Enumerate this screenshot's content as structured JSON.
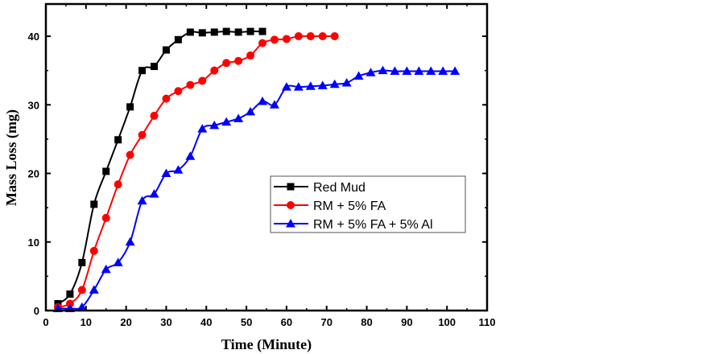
{
  "chart_data": {
    "type": "line",
    "xlabel": "Time (Minute)",
    "ylabel": "Mass Loss (mg)",
    "xlim": [
      0,
      110
    ],
    "ylim": [
      0,
      44.7
    ],
    "xticks": [
      0,
      10,
      20,
      30,
      40,
      50,
      60,
      70,
      80,
      90,
      100,
      110
    ],
    "yticks": [
      0,
      10,
      20,
      30,
      40
    ],
    "legend_position": "center-right",
    "grid": false,
    "series": [
      {
        "name": "Red Mud",
        "color": "#000000",
        "marker": "square",
        "x": [
          3,
          6,
          9,
          12,
          15,
          18,
          21,
          24,
          27,
          30,
          33,
          36,
          39,
          42,
          45,
          48,
          51,
          54
        ],
        "y": [
          1,
          2.4,
          7,
          15.5,
          20.3,
          24.9,
          29.7,
          35,
          35.6,
          38,
          39.5,
          40.6,
          40.5,
          40.6,
          40.7,
          40.6,
          40.7,
          40.7
        ]
      },
      {
        "name": "RM + 5% FA",
        "color": "#ff0000",
        "marker": "circle",
        "x": [
          3,
          6,
          9,
          12,
          15,
          18,
          21,
          24,
          27,
          30,
          33,
          36,
          39,
          42,
          45,
          48,
          51,
          54,
          57,
          60,
          63,
          66,
          69,
          72
        ],
        "y": [
          0.5,
          1,
          3,
          8.7,
          13.5,
          18.4,
          22.7,
          25.6,
          28.4,
          30.9,
          32,
          32.9,
          33.5,
          35,
          36.1,
          36.4,
          37.2,
          39,
          39.5,
          39.6,
          40,
          40,
          40,
          40
        ]
      },
      {
        "name": "RM + 5% FA + 5% Al",
        "color": "#0000ff",
        "marker": "triangle",
        "x": [
          3,
          6,
          9,
          12,
          15,
          18,
          21,
          24,
          27,
          30,
          33,
          36,
          39,
          42,
          45,
          48,
          51,
          54,
          57,
          60,
          63,
          66,
          69,
          72,
          75,
          78,
          81,
          84,
          87,
          90,
          93,
          96,
          99,
          102
        ],
        "y": [
          0.3,
          0.3,
          0.5,
          3,
          6,
          7,
          10,
          16,
          17,
          20,
          20.5,
          22.5,
          26.5,
          27,
          27.5,
          28,
          29,
          30.5,
          30,
          32.6,
          32.6,
          32.7,
          32.8,
          33,
          33.2,
          34.2,
          34.7,
          35,
          34.9,
          34.9,
          34.9,
          34.9,
          34.9,
          34.9
        ]
      }
    ]
  }
}
